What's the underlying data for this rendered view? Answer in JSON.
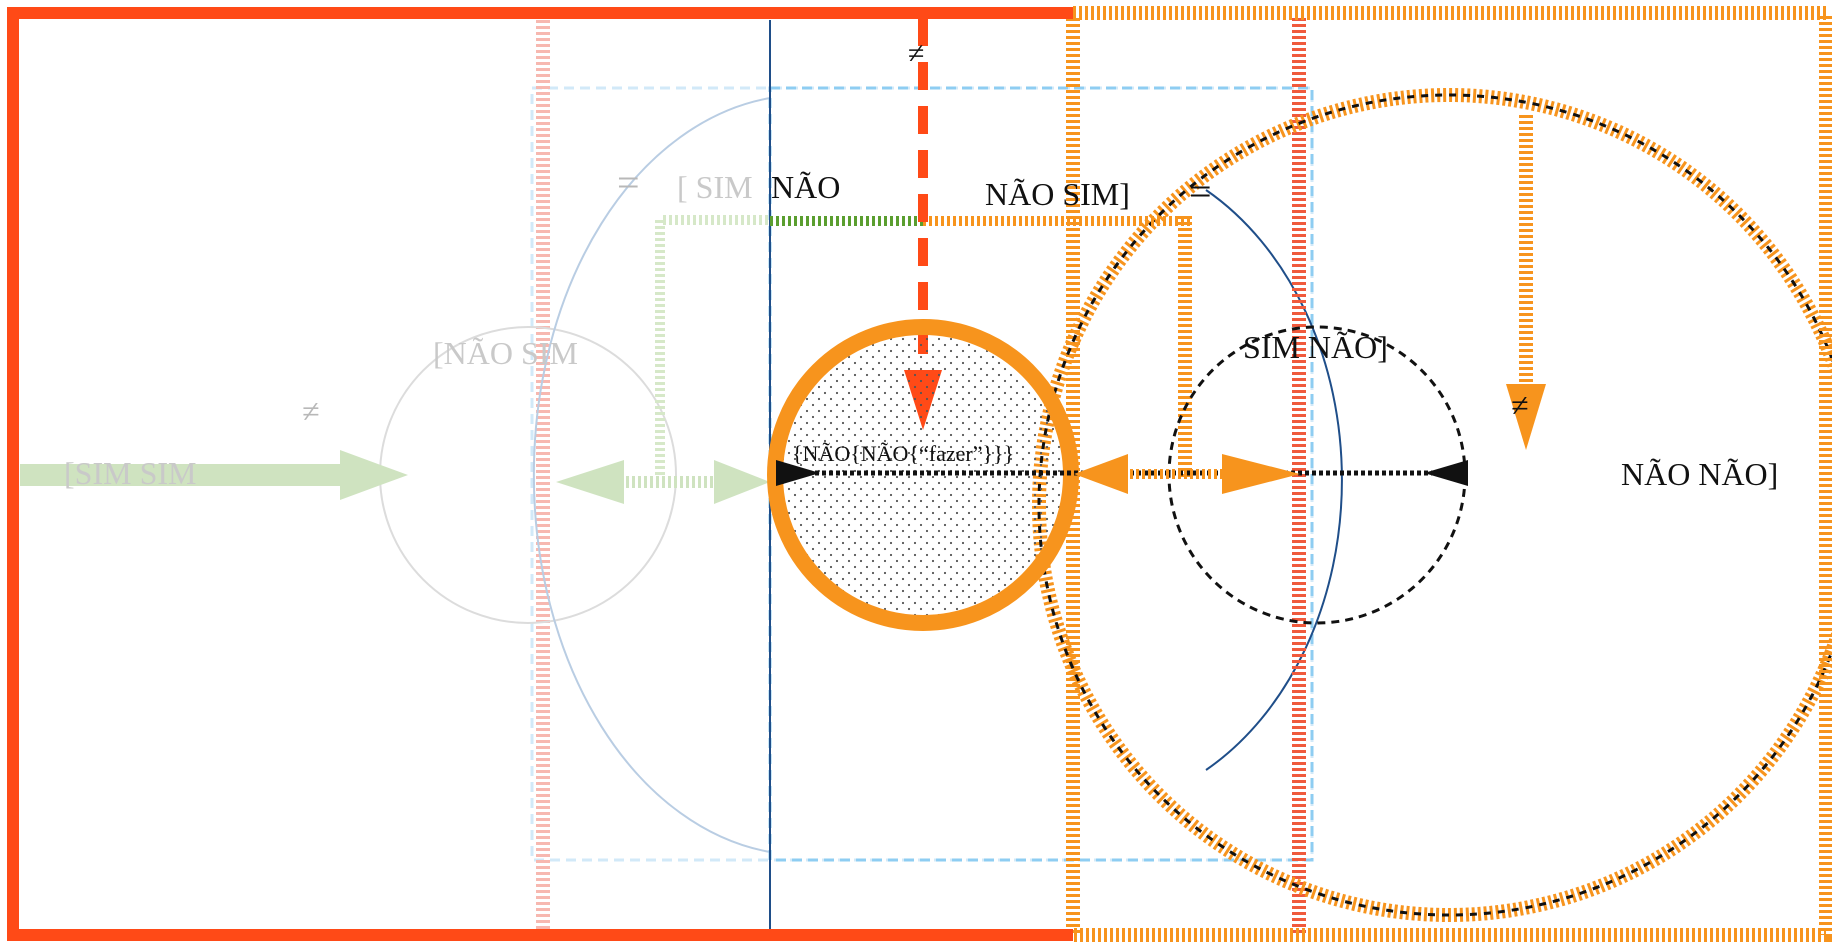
{
  "colors": {
    "frame_red": "#ff4a17",
    "orange": "#f7941d",
    "red_stripe": "#f05a3c",
    "pink_faded": "#f7b8b0",
    "light_blue": "#8ecdf2",
    "dark_blue": "#1f4e89",
    "faded_blue": "#b9cde3",
    "green": "#5a9e2f",
    "green_faded": "#cfe3c0",
    "faded_gray": "#d6d6d6"
  },
  "labels": {
    "sim_sim": "[SIM SIM",
    "nao_sim_left": "[NÃO SIM",
    "neq_left": "≠",
    "eq_faded": "=",
    "sim_bracket_faded": "[ SIM",
    "nao_top": "NÃO",
    "neq_top": "≠",
    "nao_sim_bracket": "NÃO  SIM]",
    "eq_right": "=",
    "center_text": "{NÃO{NÃO{“fazer”}}}",
    "sim_nao_bracket": "SIM NÃO]",
    "neq_right": "≠",
    "nao_nao_bracket": "NÃO NÃO]"
  }
}
